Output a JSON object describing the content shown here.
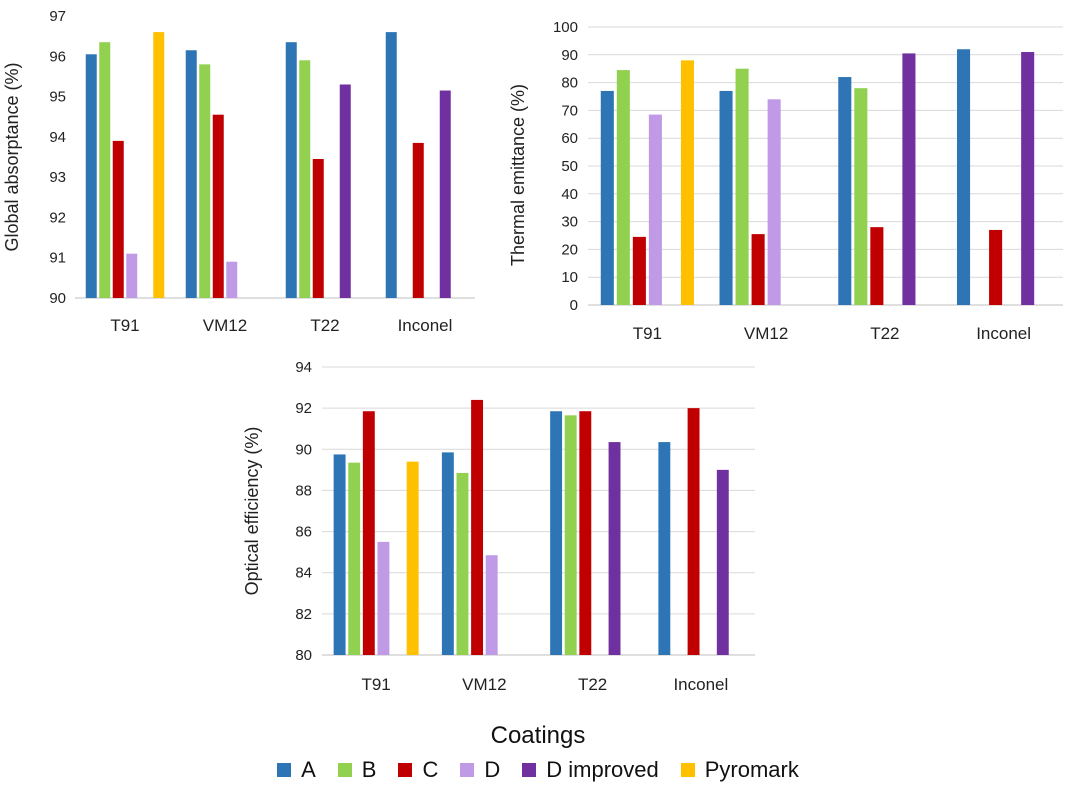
{
  "legend": {
    "title": "Coatings",
    "items": [
      {
        "name": "A",
        "color": "#2E75B6"
      },
      {
        "name": "B",
        "color": "#92D050"
      },
      {
        "name": "C",
        "color": "#C00000"
      },
      {
        "name": "D",
        "color": "#C09AE6"
      },
      {
        "name": "D improved",
        "color": "#7030A0"
      },
      {
        "name": "Pyromark",
        "color": "#FFC000"
      }
    ]
  },
  "chart_data": [
    {
      "type": "bar",
      "ylabel": "Global absorptance  (%)",
      "xlabel": "",
      "categories": [
        "T91",
        "VM12",
        "T22",
        "Inconel"
      ],
      "ylim": [
        90,
        97
      ],
      "yticks": [
        90,
        91,
        92,
        93,
        94,
        95,
        96,
        97
      ],
      "grid": false,
      "series": [
        {
          "name": "A",
          "values": [
            96.05,
            96.15,
            96.35,
            96.6
          ]
        },
        {
          "name": "B",
          "values": [
            96.35,
            95.8,
            95.9,
            null
          ]
        },
        {
          "name": "C",
          "values": [
            93.9,
            94.55,
            93.45,
            93.85
          ]
        },
        {
          "name": "D",
          "values": [
            91.1,
            90.9,
            null,
            null
          ]
        },
        {
          "name": "D improved",
          "values": [
            null,
            null,
            95.3,
            95.15
          ]
        },
        {
          "name": "Pyromark",
          "values": [
            96.6,
            null,
            null,
            null
          ]
        }
      ]
    },
    {
      "type": "bar",
      "ylabel": "Thermal emittance (%)",
      "xlabel": "",
      "categories": [
        "T91",
        "VM12",
        "T22",
        "Inconel"
      ],
      "ylim": [
        0,
        100
      ],
      "yticks": [
        0,
        10,
        20,
        30,
        40,
        50,
        60,
        70,
        80,
        90,
        100
      ],
      "grid": true,
      "series": [
        {
          "name": "A",
          "values": [
            77,
            77,
            82,
            92
          ]
        },
        {
          "name": "B",
          "values": [
            84.5,
            85,
            78,
            null
          ]
        },
        {
          "name": "C",
          "values": [
            24.5,
            25.5,
            28,
            27
          ]
        },
        {
          "name": "D",
          "values": [
            68.5,
            74,
            null,
            null
          ]
        },
        {
          "name": "D improved",
          "values": [
            null,
            null,
            90.5,
            91
          ]
        },
        {
          "name": "Pyromark",
          "values": [
            88,
            null,
            null,
            null
          ]
        }
      ]
    },
    {
      "type": "bar",
      "ylabel": "Optical efficiency (%)",
      "xlabel": "",
      "categories": [
        "T91",
        "VM12",
        "T22",
        "Inconel"
      ],
      "ylim": [
        80,
        94
      ],
      "yticks": [
        80,
        82,
        84,
        86,
        88,
        90,
        92,
        94
      ],
      "grid": true,
      "series": [
        {
          "name": "A",
          "values": [
            89.75,
            89.85,
            91.85,
            90.35
          ]
        },
        {
          "name": "B",
          "values": [
            89.35,
            88.85,
            91.65,
            null
          ]
        },
        {
          "name": "C",
          "values": [
            91.85,
            92.4,
            91.85,
            92.0
          ]
        },
        {
          "name": "D",
          "values": [
            85.5,
            84.85,
            null,
            null
          ]
        },
        {
          "name": "D improved",
          "values": [
            null,
            null,
            90.35,
            89.0
          ]
        },
        {
          "name": "Pyromark",
          "values": [
            89.4,
            null,
            null,
            null
          ]
        }
      ]
    }
  ]
}
